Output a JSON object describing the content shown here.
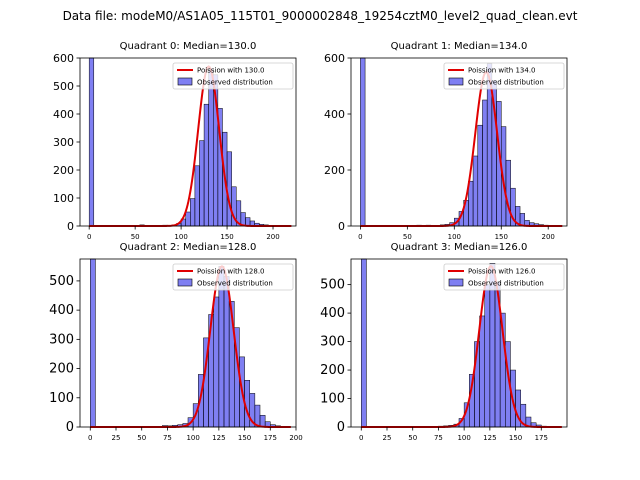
{
  "suptitle": "Data file: modeM0/AS1A05_115T01_9000002848_19254cztM0_level2_quad_clean.evt",
  "chart_data": [
    {
      "type": "bar",
      "title": "Quadrant 0: Median=130.0",
      "legend": [
        "Poission with 130.0",
        "Observed distribution"
      ],
      "legend_loc": "upper right",
      "xlim": [
        -10,
        225
      ],
      "ylim": [
        0,
        600
      ],
      "xticks": [
        0,
        50,
        100,
        150,
        200
      ],
      "yticks": [
        0,
        100,
        200,
        300,
        400,
        500,
        600
      ],
      "bin_width": 5,
      "bins": [
        [
          0,
          610
        ],
        [
          55,
          4
        ],
        [
          65,
          2
        ],
        [
          80,
          3
        ],
        [
          90,
          4
        ],
        [
          95,
          9
        ],
        [
          100,
          25
        ],
        [
          105,
          50
        ],
        [
          110,
          98
        ],
        [
          115,
          215
        ],
        [
          120,
          305
        ],
        [
          125,
          435
        ],
        [
          130,
          560
        ],
        [
          135,
          540
        ],
        [
          140,
          420
        ],
        [
          145,
          335
        ],
        [
          150,
          265
        ],
        [
          155,
          140
        ],
        [
          160,
          90
        ],
        [
          165,
          48
        ],
        [
          170,
          30
        ],
        [
          175,
          18
        ],
        [
          180,
          10
        ],
        [
          185,
          6
        ],
        [
          190,
          4
        ],
        [
          195,
          2
        ],
        [
          200,
          1
        ]
      ],
      "poisson": {
        "mu": 130.0,
        "peak": 570
      }
    },
    {
      "type": "bar",
      "title": "Quadrant 1: Median=134.0",
      "legend": [
        "Poission with 134.0",
        "Observed distribution"
      ],
      "legend_loc": "upper right",
      "xlim": [
        -10,
        220
      ],
      "ylim": [
        0,
        600
      ],
      "xticks": [
        0,
        50,
        100,
        150,
        200
      ],
      "yticks": [
        0,
        200,
        400,
        600
      ],
      "bin_width": 5,
      "bins": [
        [
          0,
          610
        ],
        [
          60,
          3
        ],
        [
          70,
          3
        ],
        [
          85,
          4
        ],
        [
          90,
          6
        ],
        [
          95,
          12
        ],
        [
          100,
          28
        ],
        [
          105,
          52
        ],
        [
          110,
          92
        ],
        [
          115,
          160
        ],
        [
          120,
          250
        ],
        [
          125,
          360
        ],
        [
          130,
          450
        ],
        [
          135,
          580
        ],
        [
          140,
          520
        ],
        [
          145,
          445
        ],
        [
          150,
          355
        ],
        [
          155,
          235
        ],
        [
          160,
          135
        ],
        [
          165,
          70
        ],
        [
          170,
          45
        ],
        [
          175,
          20
        ],
        [
          180,
          12
        ],
        [
          185,
          8
        ],
        [
          190,
          5
        ],
        [
          195,
          3
        ],
        [
          200,
          2
        ]
      ],
      "poisson": {
        "mu": 134.0,
        "peak": 550
      }
    },
    {
      "type": "bar",
      "title": "Quadrant 2: Median=128.0",
      "legend": [
        "Poission with 128.0",
        "Observed distribution"
      ],
      "legend_loc": "upper right",
      "xlim": [
        -10,
        200
      ],
      "ylim": [
        0,
        575
      ],
      "xticks": [
        0,
        25,
        50,
        75,
        100,
        125,
        150,
        175,
        200
      ],
      "yticks": [
        0,
        100,
        200,
        300,
        400,
        500
      ],
      "bin_width": 5,
      "bins": [
        [
          0,
          600
        ],
        [
          70,
          5
        ],
        [
          75,
          4
        ],
        [
          80,
          6
        ],
        [
          85,
          8
        ],
        [
          90,
          12
        ],
        [
          95,
          32
        ],
        [
          100,
          80
        ],
        [
          105,
          180
        ],
        [
          110,
          305
        ],
        [
          115,
          385
        ],
        [
          120,
          445
        ],
        [
          125,
          550
        ],
        [
          130,
          515
        ],
        [
          135,
          430
        ],
        [
          140,
          340
        ],
        [
          145,
          240
        ],
        [
          150,
          160
        ],
        [
          155,
          115
        ],
        [
          160,
          75
        ],
        [
          165,
          40
        ],
        [
          170,
          18
        ],
        [
          175,
          8
        ],
        [
          180,
          4
        ],
        [
          185,
          2
        ]
      ],
      "poisson": {
        "mu": 128.0,
        "peak": 550
      }
    },
    {
      "type": "bar",
      "title": "Quadrant 3: Median=126.0",
      "legend": [
        "Poission with 126.0",
        "Observed distribution"
      ],
      "legend_loc": "upper right",
      "xlim": [
        -10,
        200
      ],
      "ylim": [
        0,
        590
      ],
      "xticks": [
        0,
        25,
        50,
        75,
        100,
        125,
        150,
        175
      ],
      "yticks": [
        0,
        100,
        200,
        300,
        400,
        500
      ],
      "bin_width": 5,
      "bins": [
        [
          0,
          600
        ],
        [
          75,
          3
        ],
        [
          80,
          4
        ],
        [
          85,
          6
        ],
        [
          90,
          10
        ],
        [
          95,
          30
        ],
        [
          100,
          85
        ],
        [
          105,
          185
        ],
        [
          110,
          300
        ],
        [
          115,
          390
        ],
        [
          120,
          500
        ],
        [
          125,
          575
        ],
        [
          130,
          510
        ],
        [
          135,
          400
        ],
        [
          140,
          300
        ],
        [
          145,
          200
        ],
        [
          150,
          130
        ],
        [
          155,
          80
        ],
        [
          160,
          35
        ],
        [
          165,
          15
        ],
        [
          170,
          7
        ],
        [
          175,
          3
        ]
      ],
      "poisson": {
        "mu": 126.0,
        "peak": 565
      }
    }
  ]
}
